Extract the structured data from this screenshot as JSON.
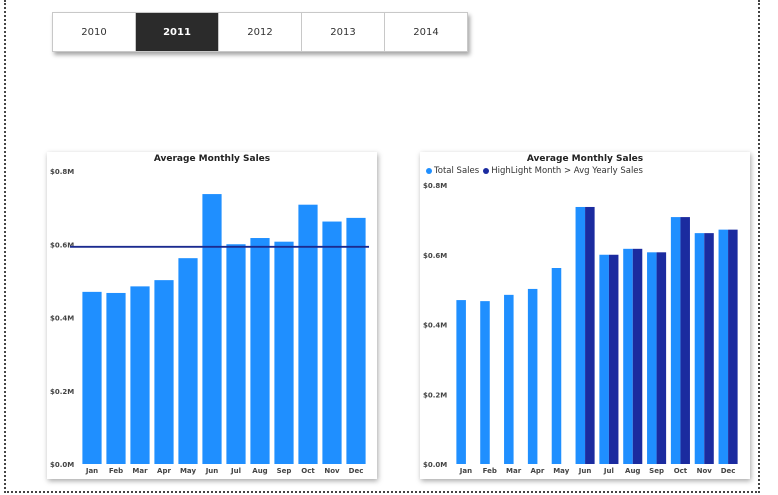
{
  "slicer": {
    "years": [
      "2010",
      "2011",
      "2012",
      "2013",
      "2014"
    ],
    "selected": "2011"
  },
  "chart_data": [
    {
      "type": "bar",
      "title": "Average Monthly Sales",
      "categories": [
        "Jan",
        "Feb",
        "Mar",
        "Apr",
        "May",
        "Jun",
        "Jul",
        "Aug",
        "Sep",
        "Oct",
        "Nov",
        "Dec"
      ],
      "values": [
        0.47,
        0.467,
        0.485,
        0.502,
        0.562,
        0.737,
        0.6,
        0.617,
        0.607,
        0.708,
        0.662,
        0.672
      ],
      "ylim": [
        0,
        0.8
      ],
      "yticks": [
        "$0.0M",
        "$0.2M",
        "$0.4M",
        "$0.6M",
        "$0.8M"
      ],
      "reference_line": 0.593,
      "colors": {
        "bar": "#1f8fff",
        "line": "#1b2b8f"
      }
    },
    {
      "type": "bar",
      "title": "Average Monthly Sales",
      "categories": [
        "Jan",
        "Feb",
        "Mar",
        "Apr",
        "May",
        "Jun",
        "Jul",
        "Aug",
        "Sep",
        "Oct",
        "Nov",
        "Dec"
      ],
      "ylim": [
        0,
        0.8
      ],
      "yticks": [
        "$0.0M",
        "$0.2M",
        "$0.4M",
        "$0.6M",
        "$0.8M"
      ],
      "series": [
        {
          "name": "Total Sales",
          "color": "#1f8fff",
          "values": [
            0.47,
            0.467,
            0.485,
            0.502,
            0.562,
            0.737,
            0.6,
            0.617,
            0.607,
            0.708,
            0.662,
            0.672
          ]
        },
        {
          "name": "HighLight Month > Avg Yearly Sales",
          "color": "#1b2b9f",
          "values": [
            null,
            null,
            null,
            null,
            null,
            0.737,
            0.6,
            0.617,
            0.607,
            0.708,
            0.662,
            0.672
          ]
        }
      ]
    }
  ]
}
